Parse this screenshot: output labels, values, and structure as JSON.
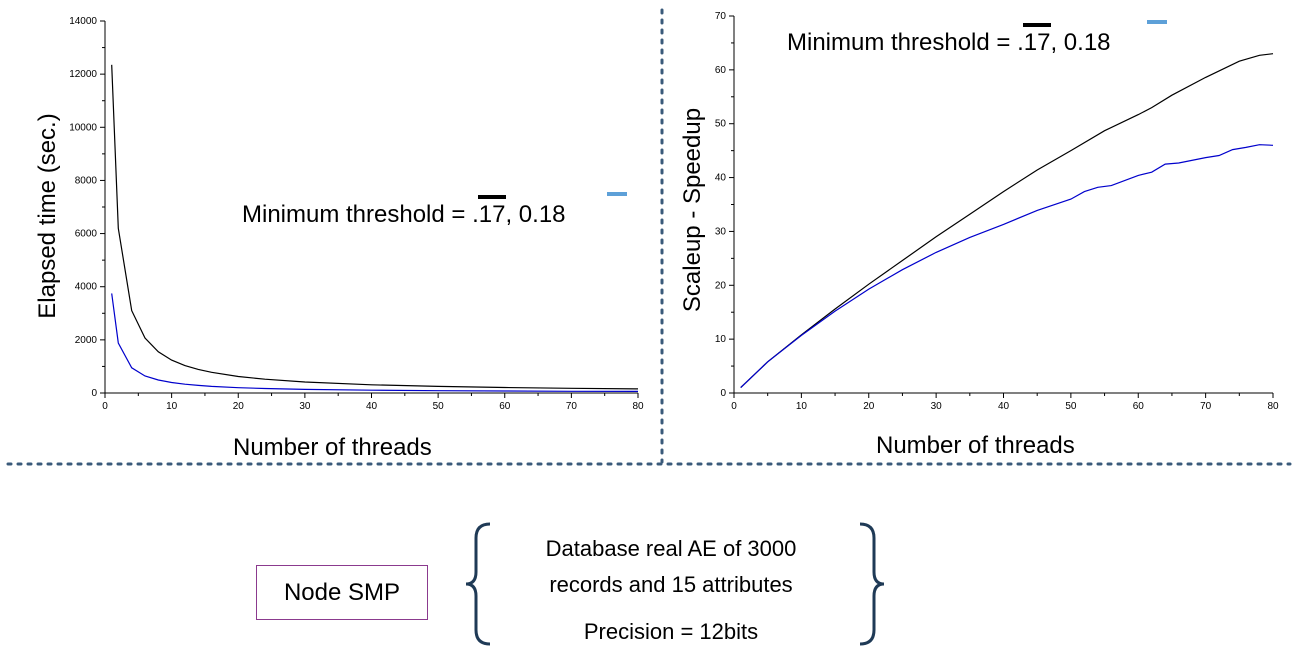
{
  "chart_data": [
    {
      "type": "line",
      "xlabel": "Number of threads",
      "ylabel": "Elapsed time (sec.)",
      "xlim": [
        0,
        80
      ],
      "ylim": [
        0,
        14000
      ],
      "xticks": [
        0,
        10,
        20,
        30,
        40,
        50,
        60,
        70,
        80
      ],
      "yticks": [
        0,
        2000,
        4000,
        6000,
        8000,
        10000,
        12000,
        14000
      ],
      "grid": false,
      "annotation": {
        "prefix": "Minimum threshold = .",
        "value1": "17",
        "sep": ", 0.",
        "value2": "18"
      },
      "series": [
        {
          "color": "#000000",
          "x": [
            1,
            2,
            4,
            6,
            8,
            10,
            12,
            14,
            16,
            20,
            24,
            30,
            40,
            50,
            60,
            70,
            80
          ],
          "y": [
            12350,
            6200,
            3100,
            2070,
            1550,
            1240,
            1030,
            890,
            780,
            620,
            520,
            415,
            310,
            250,
            208,
            178,
            155
          ]
        },
        {
          "color": "#0000cc",
          "x": [
            1,
            2,
            4,
            6,
            8,
            10,
            12,
            14,
            16,
            20,
            24,
            30,
            40,
            50,
            60,
            70,
            80
          ],
          "y": [
            3750,
            1880,
            950,
            640,
            490,
            395,
            330,
            285,
            250,
            200,
            170,
            135,
            105,
            85,
            75,
            65,
            60
          ]
        }
      ]
    },
    {
      "type": "line",
      "xlabel": "Number of threads",
      "ylabel": "Scaleup - Speedup",
      "xlim": [
        0,
        80
      ],
      "ylim": [
        0,
        70
      ],
      "xticks": [
        0,
        10,
        20,
        30,
        40,
        50,
        60,
        70,
        80
      ],
      "yticks": [
        0,
        10,
        20,
        30,
        40,
        50,
        60,
        70
      ],
      "grid": false,
      "annotation": {
        "prefix": "Minimum threshold = .",
        "value1": "17",
        "sep": ", 0.",
        "value2": "18"
      },
      "series": [
        {
          "color": "#000000",
          "x": [
            1,
            5,
            10,
            15,
            20,
            25,
            30,
            35,
            40,
            45,
            50,
            55,
            60,
            62,
            65,
            70,
            75,
            78,
            80
          ],
          "y": [
            1,
            5.8,
            10.8,
            15.6,
            20.2,
            24.6,
            29,
            33.2,
            37.4,
            41.4,
            45,
            48.7,
            51.7,
            53,
            55.3,
            58.6,
            61.6,
            62.7,
            63
          ]
        },
        {
          "color": "#0000cc",
          "x": [
            1,
            5,
            10,
            15,
            20,
            25,
            30,
            35,
            40,
            45,
            50,
            52,
            54,
            56,
            60,
            62,
            64,
            66,
            70,
            72,
            74,
            76,
            78,
            80
          ],
          "y": [
            1,
            5.8,
            10.7,
            15.2,
            19.3,
            22.9,
            26.1,
            28.9,
            31.3,
            33.9,
            36,
            37.4,
            38.2,
            38.5,
            40.4,
            41,
            42.5,
            42.7,
            43.7,
            44.1,
            45.2,
            45.6,
            46.1,
            46
          ]
        }
      ]
    }
  ],
  "node": {
    "label": "Node SMP"
  },
  "info": {
    "line1": "Database real AE of 3000",
    "line2": "records and 15 attributes",
    "line3": "Precision = 12bits"
  },
  "colors": {
    "box_border": "#8b3a8e",
    "brace": "#1f3a56",
    "dotted": "#3a5a7a",
    "threshold_blue": "#5da0d8"
  }
}
